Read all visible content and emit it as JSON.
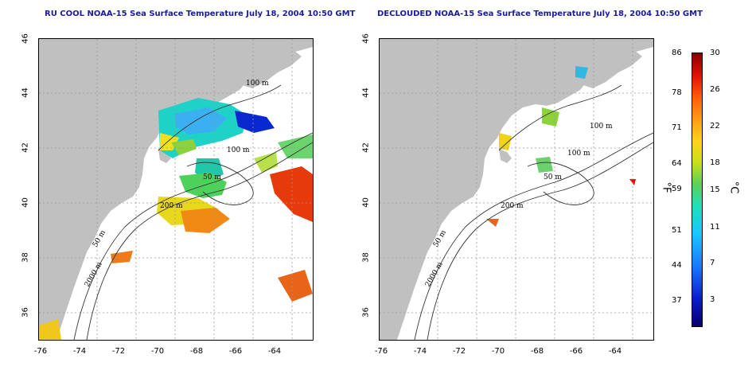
{
  "titles": {
    "left": "RU COOL NOAA-15 Sea Surface Temperature July 18, 2004 10:50 GMT",
    "right": "DECLOUDED NOAA-15 Sea Surface Temperature July 18, 2004 10:50 GMT"
  },
  "lat_ticks": [
    "46",
    "44",
    "42",
    "40",
    "38",
    "36"
  ],
  "lon_ticks": [
    "-76",
    "-74",
    "-72",
    "-70",
    "-68",
    "-66",
    "-64"
  ],
  "contour_labels": {
    "left": [
      "100 m",
      "100 m",
      "50 m",
      "200 m",
      "50 m",
      "2000 m"
    ],
    "right": [
      "100 m",
      "100 m",
      "50 m",
      "200 m",
      "50 m",
      "2000 m"
    ]
  },
  "colorbar": {
    "fahrenheit_ticks": [
      "86",
      "78",
      "71",
      "64",
      "59",
      "51",
      "44",
      "37"
    ],
    "celsius_ticks": [
      "30",
      "26",
      "22",
      "18",
      "15",
      "11",
      "7",
      "3"
    ],
    "fahrenheit_unit": "°F",
    "celsius_unit": "°C",
    "colors": [
      "#08006b",
      "#1a78ff",
      "#19c8ff",
      "#5ad05a",
      "#ffd21c",
      "#ff5a0a",
      "#8a0000"
    ]
  },
  "colors": {
    "land": "#c0c0c0",
    "title": "#1a1aa0",
    "grid": "#9a9a9a"
  }
}
